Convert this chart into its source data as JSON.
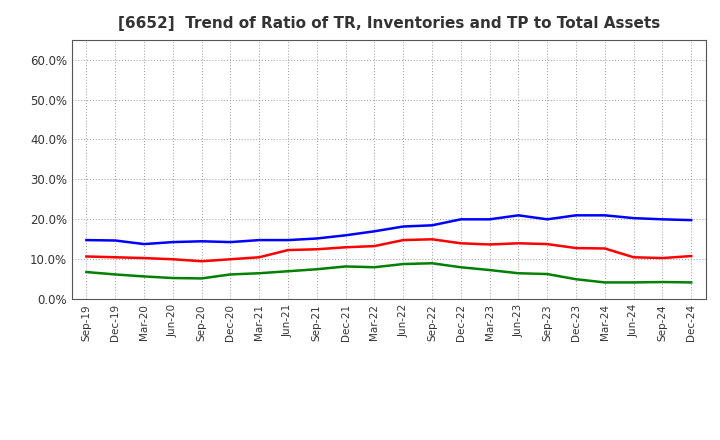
{
  "title": "[6652]  Trend of Ratio of TR, Inventories and TP to Total Assets",
  "x_labels": [
    "Sep-19",
    "Dec-19",
    "Mar-20",
    "Jun-20",
    "Sep-20",
    "Dec-20",
    "Mar-21",
    "Jun-21",
    "Sep-21",
    "Dec-21",
    "Mar-22",
    "Jun-22",
    "Sep-22",
    "Dec-22",
    "Mar-23",
    "Jun-23",
    "Sep-23",
    "Dec-23",
    "Mar-24",
    "Jun-24",
    "Sep-24",
    "Dec-24"
  ],
  "trade_receivables": [
    0.107,
    0.105,
    0.103,
    0.1,
    0.095,
    0.1,
    0.105,
    0.123,
    0.125,
    0.13,
    0.133,
    0.148,
    0.15,
    0.14,
    0.137,
    0.14,
    0.138,
    0.128,
    0.127,
    0.105,
    0.103,
    0.108
  ],
  "inventories": [
    0.148,
    0.147,
    0.138,
    0.143,
    0.145,
    0.143,
    0.148,
    0.148,
    0.152,
    0.16,
    0.17,
    0.182,
    0.185,
    0.2,
    0.2,
    0.21,
    0.2,
    0.21,
    0.21,
    0.203,
    0.2,
    0.198
  ],
  "trade_payables": [
    0.068,
    0.062,
    0.057,
    0.053,
    0.052,
    0.062,
    0.065,
    0.07,
    0.075,
    0.082,
    0.08,
    0.088,
    0.09,
    0.08,
    0.073,
    0.065,
    0.063,
    0.05,
    0.042,
    0.042,
    0.043,
    0.042
  ],
  "tr_color": "#ff0000",
  "inv_color": "#0000ff",
  "tp_color": "#008000",
  "ylim": [
    0.0,
    0.65
  ],
  "yticks": [
    0.0,
    0.1,
    0.2,
    0.3,
    0.4,
    0.5,
    0.6
  ],
  "bg_color": "#ffffff",
  "grid_color": "#999999",
  "line_width": 1.8,
  "title_color": "#333333",
  "tick_color": "#333333"
}
